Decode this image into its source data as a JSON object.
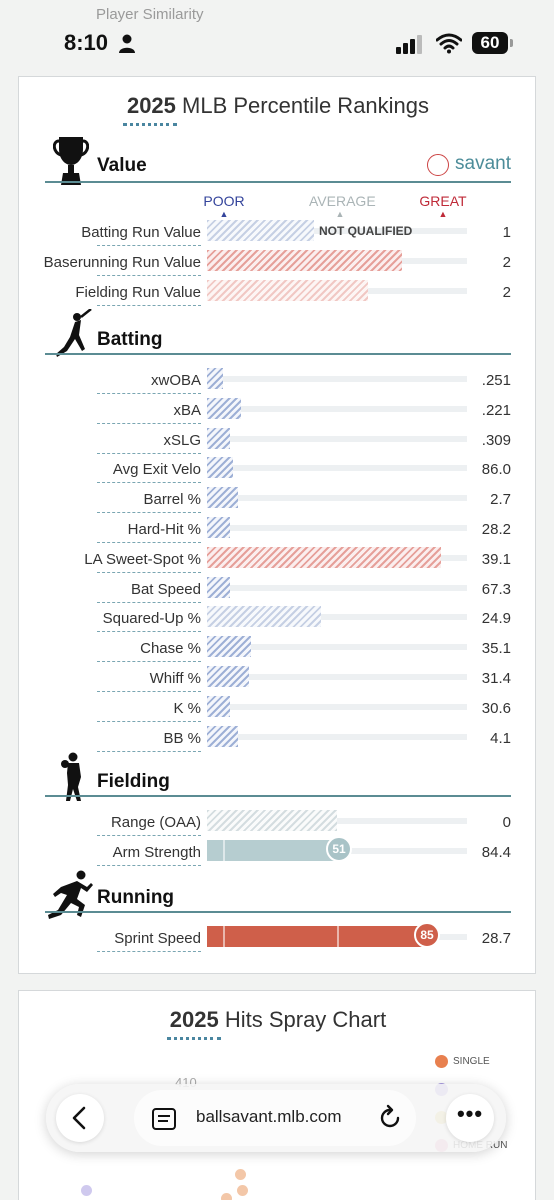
{
  "top_ghost": "Player Similarity",
  "status": {
    "time": "8:10",
    "battery": "60"
  },
  "card": {
    "title_year": "2025",
    "title_rest": " MLB Percentile Rankings",
    "savant": "savant",
    "scale": {
      "poor": "POOR",
      "average": "AVERAGE",
      "great": "GREAT"
    },
    "sections": {
      "value": "Value",
      "batting": "Batting",
      "fielding": "Fielding",
      "running": "Running"
    },
    "value_rows": [
      {
        "label": "Batting Run Value",
        "value": "1",
        "note": "NOT QUALIFIED",
        "fill": 0.41
      },
      {
        "label": "Baserunning Run Value",
        "value": "2",
        "fill": 0.75
      },
      {
        "label": "Fielding Run Value",
        "value": "2",
        "fill": 0.62
      }
    ],
    "batting_rows": [
      {
        "label": "xwOBA",
        "value": ".251",
        "fill": 0.06
      },
      {
        "label": "xBA",
        "value": ".221",
        "fill": 0.13
      },
      {
        "label": "xSLG",
        "value": ".309",
        "fill": 0.09
      },
      {
        "label": "Avg Exit Velo",
        "value": "86.0",
        "fill": 0.1
      },
      {
        "label": "Barrel %",
        "value": "2.7",
        "fill": 0.12
      },
      {
        "label": "Hard-Hit %",
        "value": "28.2",
        "fill": 0.09
      },
      {
        "label": "LA Sweet-Spot %",
        "value": "39.1",
        "fill": 0.9
      },
      {
        "label": "Bat Speed",
        "value": "67.3",
        "fill": 0.09
      },
      {
        "label": "Squared-Up %",
        "value": "24.9",
        "fill": 0.44
      },
      {
        "label": "Chase %",
        "value": "35.1",
        "fill": 0.17
      },
      {
        "label": "Whiff %",
        "value": "31.4",
        "fill": 0.16
      },
      {
        "label": "K %",
        "value": "30.6",
        "fill": 0.09
      },
      {
        "label": "BB %",
        "value": "4.1",
        "fill": 0.12
      }
    ],
    "fielding_rows": [
      {
        "label": "Range (OAA)",
        "value": "0",
        "fill": 0.5
      },
      {
        "label": "Arm Strength",
        "value": "84.4",
        "fill": 0.51,
        "percentile": "51"
      }
    ],
    "running_rows": [
      {
        "label": "Sprint Speed",
        "value": "28.7",
        "fill": 0.85,
        "percentile": "85"
      }
    ]
  },
  "card2": {
    "title_year": "2025",
    "title_rest": " Hits Spray Chart",
    "fence": "410",
    "legend": [
      {
        "label": "SINGLE",
        "color": "#e8804f"
      },
      {
        "label": "",
        "color": "#a89be0"
      },
      {
        "label": "",
        "color": "#e7d27a"
      },
      {
        "label": "HOME RUN",
        "color": "#e9a7c0"
      }
    ]
  },
  "browser": {
    "url": "ballsavant.mlb.com"
  }
}
